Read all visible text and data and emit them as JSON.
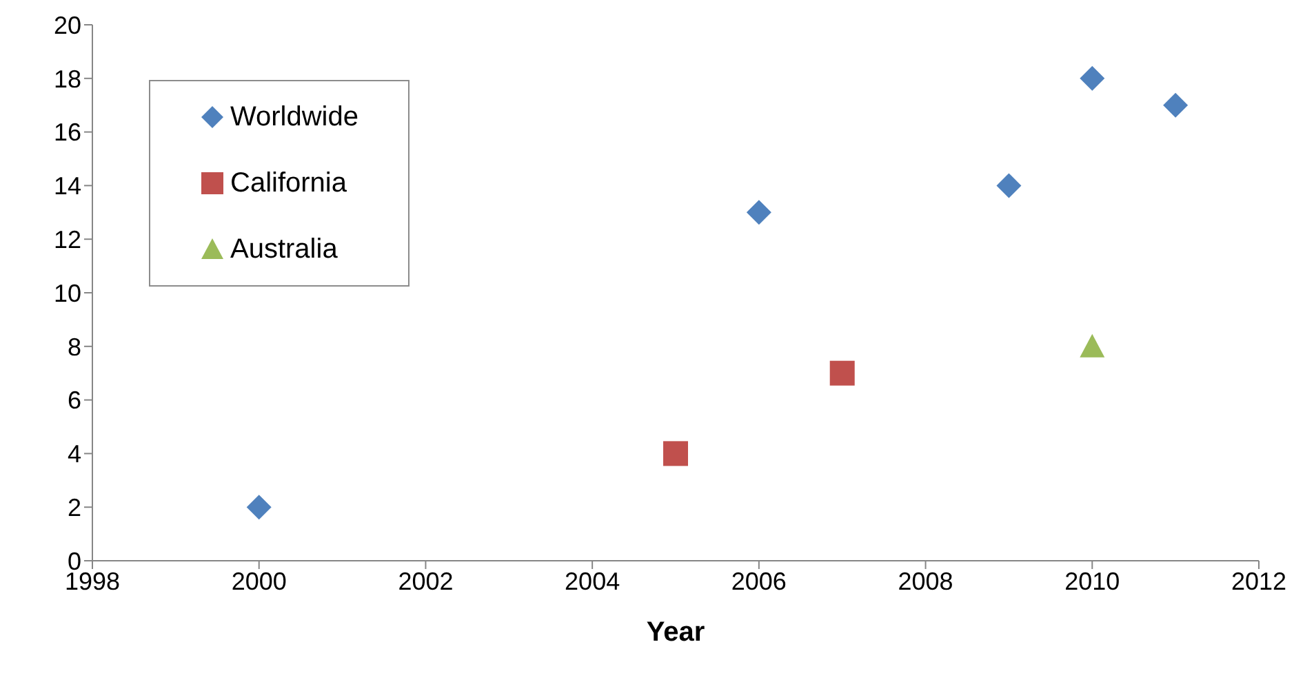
{
  "chart_data": {
    "type": "scatter",
    "xlabel": "Year",
    "xlim": [
      1998,
      2012
    ],
    "xticks": [
      1998,
      2000,
      2002,
      2004,
      2006,
      2008,
      2010,
      2012
    ],
    "ylim": [
      0,
      20
    ],
    "yticks": [
      0,
      2,
      4,
      6,
      8,
      10,
      12,
      14,
      16,
      18,
      20
    ],
    "grid": false,
    "legend": "top left",
    "series": [
      {
        "name": "Worldwide",
        "color": "#4f81bd",
        "marker": "diamond",
        "x": [
          2000,
          2006,
          2009,
          2010,
          2011
        ],
        "values": [
          2,
          13,
          14,
          18,
          17
        ]
      },
      {
        "name": "California",
        "color": "#c0504d",
        "marker": "square",
        "x": [
          2005,
          2007
        ],
        "values": [
          4,
          7
        ]
      },
      {
        "name": "Australia",
        "color": "#9bbb59",
        "marker": "triangle",
        "x": [
          2010
        ],
        "values": [
          8
        ]
      }
    ]
  }
}
